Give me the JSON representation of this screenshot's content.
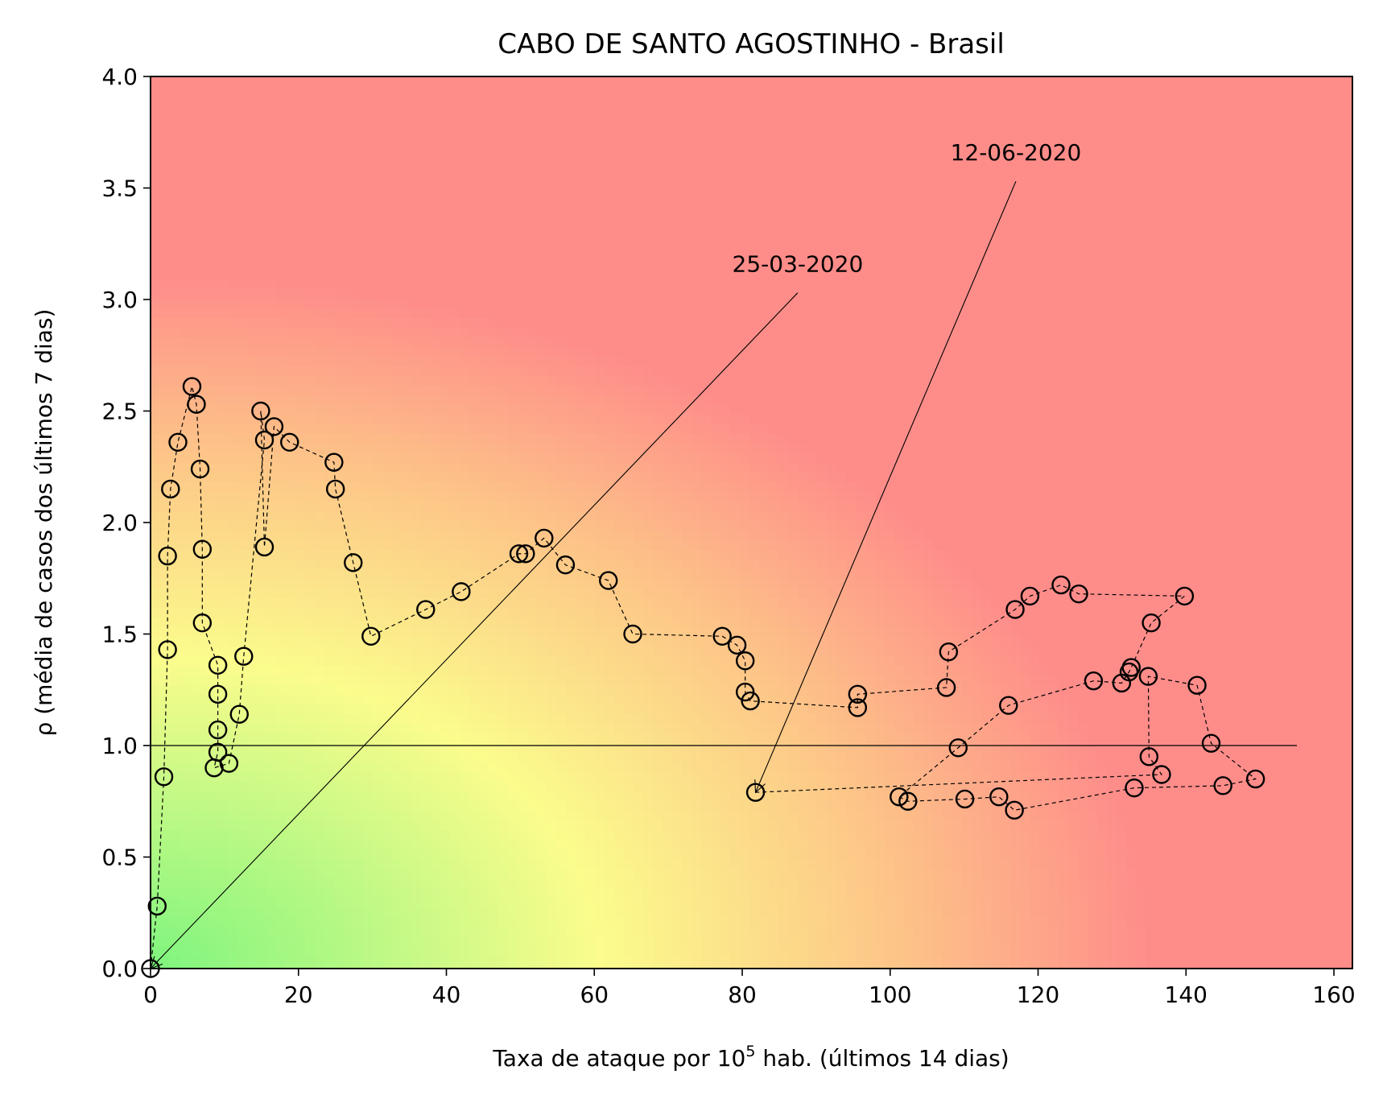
{
  "chart_data": {
    "type": "scatter",
    "title": "CABO DE SANTO AGOSTINHO - Brasil",
    "xlabel_main": "Taxa de ataque por 10",
    "xlabel_sup": "5",
    "xlabel_rest": " hab. (últimos 14 dias)",
    "ylabel": "ρ (média de casos dos últimos 7 dias)",
    "xlim": [
      0,
      162.5
    ],
    "ylim": [
      0,
      4.0
    ],
    "xticks": [
      "0",
      "20",
      "40",
      "60",
      "80",
      "100",
      "120",
      "140",
      "160"
    ],
    "yticks": [
      "0.0",
      "0.5",
      "1.0",
      "1.5",
      "2.0",
      "2.5",
      "3.0",
      "3.5",
      "4.0"
    ],
    "reference_line": {
      "y": 1.0,
      "x_start": 0,
      "x_end": 155
    },
    "annotations": [
      {
        "text": "25-03-2020",
        "point": [
          0.0,
          0.0
        ],
        "label_at": [
          87.5,
          3.03
        ]
      },
      {
        "text": "12-06-2020",
        "point": [
          81.8,
          0.79
        ],
        "label_at": [
          117,
          3.53
        ]
      }
    ],
    "series": [
      {
        "x": [
          0.0,
          0.9,
          1.8,
          2.3,
          2.3,
          2.7,
          3.7,
          5.6,
          6.2,
          6.7,
          7.0,
          7.0,
          9.1,
          9.1,
          9.1,
          9.1,
          8.6,
          10.6,
          12.0,
          12.6,
          15.4,
          14.9,
          15.4,
          16.7,
          18.8,
          24.8,
          25.0,
          27.4,
          29.8,
          37.2,
          42.0,
          49.8,
          50.7,
          53.2,
          56.1,
          61.9,
          65.2,
          77.3,
          79.3,
          80.4,
          80.4,
          81.1,
          95.6,
          95.6,
          107.6,
          107.9,
          116.9,
          118.9,
          123.1,
          125.5,
          139.8,
          135.3,
          132.6,
          132.3,
          131.3,
          127.5,
          116.0,
          109.2,
          101.2,
          102.4,
          110.1,
          114.7,
          116.8,
          133.0,
          145.0,
          149.4,
          143.4,
          141.5,
          134.9,
          135.0,
          136.7,
          81.8
        ],
        "y": [
          0.0,
          0.28,
          0.86,
          1.43,
          1.85,
          2.15,
          2.36,
          2.61,
          2.53,
          2.24,
          1.88,
          1.55,
          1.36,
          1.23,
          1.07,
          0.97,
          0.9,
          0.92,
          1.14,
          1.4,
          2.37,
          2.5,
          1.89,
          2.43,
          2.36,
          2.27,
          2.15,
          1.82,
          1.49,
          1.61,
          1.69,
          1.86,
          1.86,
          1.93,
          1.81,
          1.74,
          1.5,
          1.49,
          1.45,
          1.38,
          1.24,
          1.2,
          1.17,
          1.23,
          1.26,
          1.42,
          1.61,
          1.67,
          1.72,
          1.68,
          1.67,
          1.55,
          1.35,
          1.33,
          1.28,
          1.29,
          1.18,
          0.99,
          0.77,
          0.75,
          0.76,
          0.77,
          0.71,
          0.81,
          0.82,
          0.85,
          1.01,
          1.27,
          1.31,
          0.95,
          0.87,
          0.79
        ]
      }
    ],
    "colors": {
      "green": "#7ef57e",
      "yellow": "#fbfc8c",
      "orange": "#fdc488",
      "red": "#fe8d8a",
      "marker_edge": "#000000"
    }
  }
}
